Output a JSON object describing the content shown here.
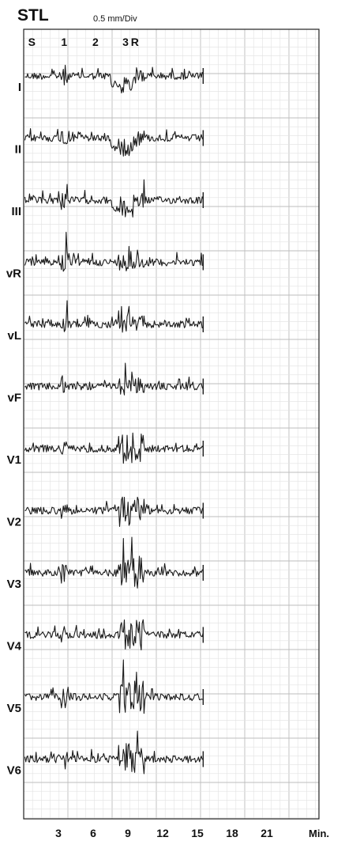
{
  "chart_data": {
    "type": "line",
    "title": "STL",
    "scale_label": "0.5 mm/Div",
    "xlabel": "Min.",
    "x_ticks": [
      3,
      6,
      9,
      12,
      15,
      18,
      21
    ],
    "xlim": [
      0,
      25.5
    ],
    "markers": [
      {
        "label": "S",
        "x": 0.7
      },
      {
        "label": "1",
        "x": 3.5
      },
      {
        "label": "2",
        "x": 6.2
      },
      {
        "label": "3",
        "x": 8.8
      },
      {
        "label": "R",
        "x": 9.6
      }
    ],
    "leads": [
      "I",
      "II",
      "III",
      "aVR",
      "aVL",
      "aVF",
      "V1",
      "V2",
      "V3",
      "V4",
      "V5",
      "V6"
    ],
    "lead_labels_visible": [
      "I",
      "II",
      "III",
      "vR",
      "vL",
      "vF",
      "V1",
      "V2",
      "V3",
      "V4",
      "V5",
      "V6"
    ],
    "grid": true,
    "colors": {
      "grid_minor": "#e2e2e2",
      "grid_major": "#bdbdbd",
      "trace": "#1a1a1a"
    }
  }
}
